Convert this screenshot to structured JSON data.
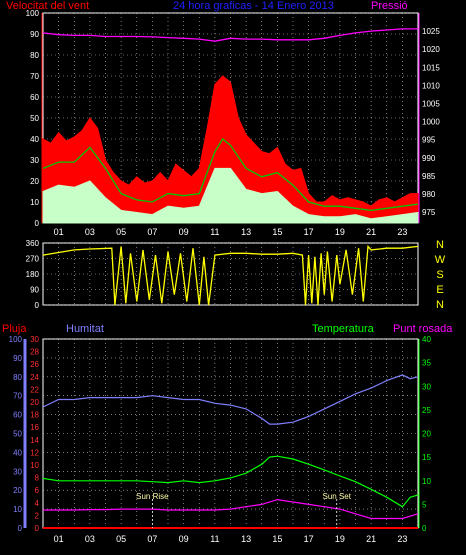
{
  "title": "24 hora graficas - 14 Enero 2013",
  "panels": {
    "wind": {
      "left_label": "Velocitat del vent",
      "right_label": "Pressió",
      "left_ticks": [
        0,
        10,
        20,
        30,
        40,
        50,
        60,
        70,
        80,
        90,
        100
      ],
      "right_ticks": [
        975,
        980,
        985,
        990,
        995,
        1000,
        1005,
        1010,
        1015,
        1020,
        1025
      ],
      "colors": {
        "gust": "#ff0000",
        "avg": "#00c800",
        "min": "#c8ffc8",
        "pressure": "#ff00ff",
        "left_axis": "#ff0000",
        "right_axis": "#ff00ff"
      }
    },
    "direction": {
      "left_ticks": [
        0,
        90,
        180,
        270,
        360
      ],
      "compass": [
        "N",
        "W",
        "S",
        "E",
        "N"
      ],
      "color": "#ffff00"
    },
    "weather": {
      "labels": {
        "rain": "Pluja",
        "humidity": "Humitat",
        "temperature": "Temperatura",
        "dewpoint": "Punt rosada"
      },
      "humidity_ticks": [
        0,
        10,
        20,
        30,
        40,
        50,
        60,
        70,
        80,
        90,
        100
      ],
      "rain_ticks": [
        0,
        2,
        4,
        6,
        8,
        10,
        12,
        14,
        16,
        18,
        20,
        22,
        24,
        26,
        28,
        30
      ],
      "temp_ticks": [
        0,
        5,
        10,
        15,
        20,
        25,
        30,
        35,
        40
      ],
      "sun_rise": "Sun Rise",
      "sun_set": "Sun Set",
      "colors": {
        "rain": "#ff0000",
        "humidity": "#8080ff",
        "temperature": "#00ff00",
        "dewpoint": "#ff00ff"
      }
    }
  },
  "x_ticks": [
    "01",
    "03",
    "05",
    "07",
    "09",
    "11",
    "13",
    "15",
    "17",
    "19",
    "21",
    "23"
  ],
  "chart_data": [
    {
      "type": "line",
      "title": "24 hora graficas - 14 Enero 2013",
      "ylabel": "Velocitat del vent",
      "y2label": "Pressió",
      "x_unit": "hour",
      "ylim": [
        0,
        100
      ],
      "y2lim": [
        972,
        1030
      ],
      "series": [
        {
          "name": "gust",
          "axis": "left",
          "x": [
            0,
            0.5,
            1,
            1.5,
            2,
            2.5,
            3,
            3.5,
            4,
            4.5,
            5,
            5.5,
            6,
            6.5,
            7,
            7.5,
            8,
            8.5,
            9,
            9.5,
            10,
            10.5,
            11,
            11.5,
            12,
            12.5,
            13,
            13.5,
            14,
            14.5,
            15,
            15.5,
            16,
            16.5,
            17,
            17.5,
            18,
            18.5,
            19,
            19.5,
            20,
            20.5,
            21,
            21.5,
            22,
            22.5,
            23,
            23.5,
            24
          ],
          "values": [
            40,
            38,
            43,
            39,
            41,
            44,
            50,
            45,
            30,
            24,
            20,
            18,
            22,
            19,
            20,
            24,
            20,
            28,
            25,
            22,
            26,
            45,
            66,
            70,
            67,
            50,
            42,
            38,
            34,
            33,
            36,
            28,
            25,
            26,
            14,
            10,
            10,
            13,
            11,
            12,
            11,
            10,
            8,
            11,
            12,
            10,
            12,
            14,
            14
          ]
        },
        {
          "name": "average",
          "axis": "left",
          "x": [
            0,
            1,
            2,
            3,
            4,
            5,
            6,
            7,
            8,
            9,
            10,
            11,
            11.5,
            12,
            13,
            14,
            15,
            16,
            17,
            18,
            19,
            20,
            21,
            22,
            23,
            24
          ],
          "values": [
            26,
            29,
            29,
            36,
            26,
            14,
            11,
            10,
            14,
            13,
            14,
            34,
            40,
            37,
            26,
            22,
            24,
            18,
            10,
            8,
            8,
            7,
            6,
            7,
            8,
            9
          ]
        },
        {
          "name": "min",
          "axis": "left",
          "x": [
            0,
            1,
            2,
            3,
            4,
            5,
            6,
            7,
            8,
            9,
            10,
            11,
            12,
            13,
            14,
            15,
            16,
            17,
            18,
            19,
            20,
            21,
            22,
            23,
            24
          ],
          "values": [
            15,
            18,
            17,
            20,
            12,
            6,
            5,
            4,
            8,
            7,
            8,
            26,
            26,
            16,
            14,
            15,
            8,
            4,
            3,
            3,
            4,
            2,
            3,
            4,
            5
          ]
        },
        {
          "name": "pressure",
          "axis": "right",
          "x": [
            0,
            1,
            2,
            3,
            4,
            5,
            6,
            7,
            8,
            9,
            10,
            11,
            12,
            13,
            14,
            15,
            16,
            17,
            18,
            19,
            20,
            21,
            22,
            23,
            24
          ],
          "values": [
            1024.5,
            1024,
            1023.8,
            1023.8,
            1023.5,
            1023.5,
            1023.5,
            1023.4,
            1023.2,
            1023,
            1022.8,
            1022.2,
            1023,
            1022.8,
            1022.8,
            1022.6,
            1022.6,
            1022.6,
            1023,
            1023.8,
            1024.5,
            1025,
            1025.3,
            1025.6,
            1025.6
          ]
        }
      ]
    },
    {
      "type": "line",
      "ylim": [
        0,
        360
      ],
      "x_unit": "hour",
      "series": [
        {
          "name": "direction",
          "x": [
            0,
            1,
            2,
            3,
            4.4,
            4.6,
            5,
            5.3,
            5.6,
            6,
            6.4,
            6.8,
            7.2,
            7.6,
            8,
            8.4,
            8.8,
            9.2,
            9.6,
            10,
            10.3,
            10.6,
            11,
            12,
            13,
            14,
            15,
            16,
            16.6,
            16.8,
            17,
            17.2,
            17.4,
            17.6,
            17.8,
            18,
            18.2,
            18.5,
            18.8,
            19,
            19.4,
            19.8,
            20.2,
            20.5,
            20.8,
            21,
            22,
            23,
            24
          ],
          "values": [
            290,
            305,
            320,
            325,
            330,
            0,
            340,
            10,
            300,
            20,
            320,
            30,
            290,
            10,
            310,
            60,
            300,
            20,
            330,
            0,
            280,
            0,
            290,
            300,
            300,
            295,
            295,
            300,
            290,
            0,
            290,
            10,
            280,
            0,
            300,
            60,
            310,
            20,
            290,
            120,
            320,
            60,
            330,
            20,
            340,
            320,
            330,
            330,
            340
          ]
        }
      ]
    },
    {
      "type": "line",
      "x_unit": "hour",
      "ylim": [
        0,
        100
      ],
      "y2lim": [
        0,
        40
      ],
      "series": [
        {
          "name": "humidity",
          "axis": "left",
          "x": [
            0,
            1,
            2,
            3,
            4,
            5,
            6,
            7,
            8,
            9,
            10,
            11,
            12,
            13,
            14,
            14.5,
            15,
            16,
            17,
            18,
            19,
            20,
            21,
            22,
            23,
            23.5,
            24
          ],
          "values": [
            64,
            68,
            68,
            69,
            69,
            69,
            69,
            70,
            69,
            68,
            68,
            66,
            65,
            63,
            58,
            55,
            55,
            56,
            59,
            63,
            67,
            71,
            74,
            78,
            81,
            79,
            80
          ]
        },
        {
          "name": "temperature",
          "axis": "right",
          "x": [
            0,
            1,
            2,
            3,
            4,
            5,
            6,
            7,
            8,
            9,
            10,
            11,
            12,
            13,
            14,
            14.5,
            15,
            16,
            17,
            18,
            19,
            20,
            21,
            22,
            23,
            23.5,
            24
          ],
          "values": [
            10.5,
            10,
            10,
            10,
            10,
            10,
            10,
            9.8,
            9.6,
            10,
            9.6,
            10,
            10.6,
            11.6,
            13.5,
            15,
            15.2,
            14.6,
            13.5,
            12.3,
            11,
            9.8,
            8.2,
            6.5,
            4.5,
            6.5,
            7
          ]
        },
        {
          "name": "dewpoint",
          "axis": "right",
          "x": [
            0,
            1,
            2,
            3,
            4,
            5,
            6,
            7,
            8,
            9,
            10,
            11,
            12,
            13,
            14,
            15,
            16,
            17,
            18,
            19,
            20,
            21,
            22,
            23,
            24
          ],
          "values": [
            3.8,
            3.8,
            3.8,
            3.9,
            3.9,
            4,
            4,
            4,
            3.8,
            3.8,
            3.8,
            3.8,
            4,
            4.5,
            5,
            6,
            5.5,
            5,
            4.5,
            4,
            3,
            2,
            2,
            2,
            3
          ]
        },
        {
          "name": "rain",
          "axis": "left",
          "x": [
            0,
            24
          ],
          "values": [
            0,
            0
          ]
        }
      ],
      "sun_rise_hour": 7,
      "sun_set_hour": 18.8
    }
  ]
}
